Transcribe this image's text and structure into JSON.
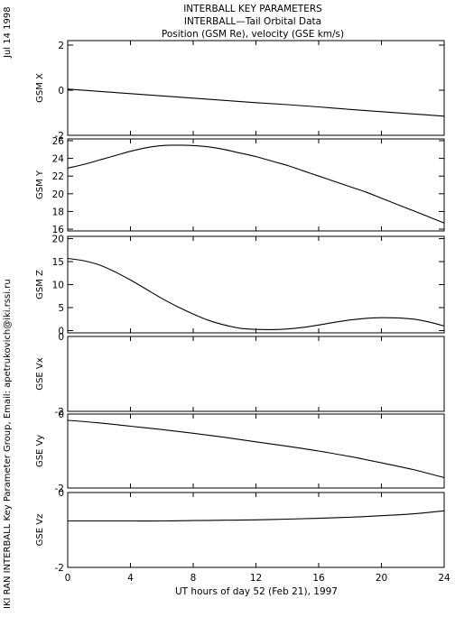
{
  "side_text": {
    "date": "Jul 14 1998",
    "credit": "IKI RAN INTERBALL Key Parameter Group, Email: apetrukovich@iki.rssi.ru"
  },
  "chart_data": {
    "type": "line",
    "title": [
      "INTERBALL KEY PARAMETERS",
      "INTERBALL—Tail Orbital Data",
      "Position (GSM Re), velocity (GSE km/s)"
    ],
    "xlabel": "UT hours of day  52 (Feb 21), 1997",
    "xlim": [
      0,
      24
    ],
    "xticks": [
      0,
      4,
      8,
      12,
      16,
      20,
      24
    ],
    "grid": false,
    "panels": [
      {
        "name": "GSM X",
        "ylim": [
          -2,
          2.2
        ],
        "yticks": [
          -2,
          0,
          2
        ],
        "x": [
          0,
          2,
          4,
          6,
          8,
          10,
          12,
          14,
          16,
          18,
          20,
          22,
          24
        ],
        "y": [
          0.05,
          -0.05,
          -0.15,
          -0.25,
          -0.35,
          -0.45,
          -0.55,
          -0.64,
          -0.74,
          -0.85,
          -0.95,
          -1.05,
          -1.15
        ]
      },
      {
        "name": "GSM Y",
        "ylim": [
          15.8,
          26.2
        ],
        "yticks": [
          16,
          18,
          20,
          22,
          24,
          26
        ],
        "x": [
          0,
          1,
          2,
          3,
          4,
          5,
          6,
          7,
          8,
          9,
          10,
          11,
          12,
          13,
          14,
          15,
          16,
          17,
          18,
          19,
          20,
          21,
          22,
          23,
          24
        ],
        "y": [
          22.9,
          23.3,
          23.8,
          24.3,
          24.8,
          25.2,
          25.45,
          25.5,
          25.45,
          25.3,
          25.0,
          24.6,
          24.2,
          23.7,
          23.2,
          22.6,
          22.0,
          21.4,
          20.8,
          20.2,
          19.5,
          18.8,
          18.1,
          17.4,
          16.7
        ]
      },
      {
        "name": "GSM Z",
        "ylim": [
          -0.5,
          20.5
        ],
        "yticks": [
          0,
          5,
          10,
          15,
          20
        ],
        "x": [
          0,
          1,
          2,
          3,
          4,
          5,
          6,
          7,
          8,
          9,
          10,
          11,
          12,
          13,
          14,
          15,
          16,
          17,
          18,
          19,
          20,
          21,
          22,
          23,
          24
        ],
        "y": [
          15.7,
          15.2,
          14.3,
          12.8,
          11.0,
          9.0,
          7.0,
          5.2,
          3.6,
          2.2,
          1.2,
          0.5,
          0.25,
          0.2,
          0.35,
          0.7,
          1.2,
          1.8,
          2.3,
          2.65,
          2.8,
          2.75,
          2.5,
          1.9,
          1.0
        ]
      },
      {
        "name": "GSE Vx",
        "ylim": [
          -2,
          0
        ],
        "yticks": [
          -2,
          0
        ],
        "x": [],
        "y": []
      },
      {
        "name": "GSE Vy",
        "ylim": [
          -2,
          0
        ],
        "yticks": [
          -2,
          0
        ],
        "x": [
          0,
          2,
          4,
          6,
          8,
          10,
          12,
          14,
          16,
          18,
          20,
          22,
          24
        ],
        "y": [
          -0.17,
          -0.24,
          -0.33,
          -0.42,
          -0.52,
          -0.63,
          -0.75,
          -0.87,
          -1.0,
          -1.15,
          -1.32,
          -1.5,
          -1.72
        ]
      },
      {
        "name": "GSE Vz",
        "ylim": [
          -2,
          0
        ],
        "yticks": [
          -2,
          0
        ],
        "x": [
          0,
          2,
          4,
          6,
          8,
          10,
          12,
          14,
          16,
          18,
          20,
          22,
          24
        ],
        "y": [
          -0.76,
          -0.76,
          -0.76,
          -0.76,
          -0.75,
          -0.74,
          -0.73,
          -0.71,
          -0.69,
          -0.66,
          -0.62,
          -0.57,
          -0.49
        ]
      }
    ]
  }
}
